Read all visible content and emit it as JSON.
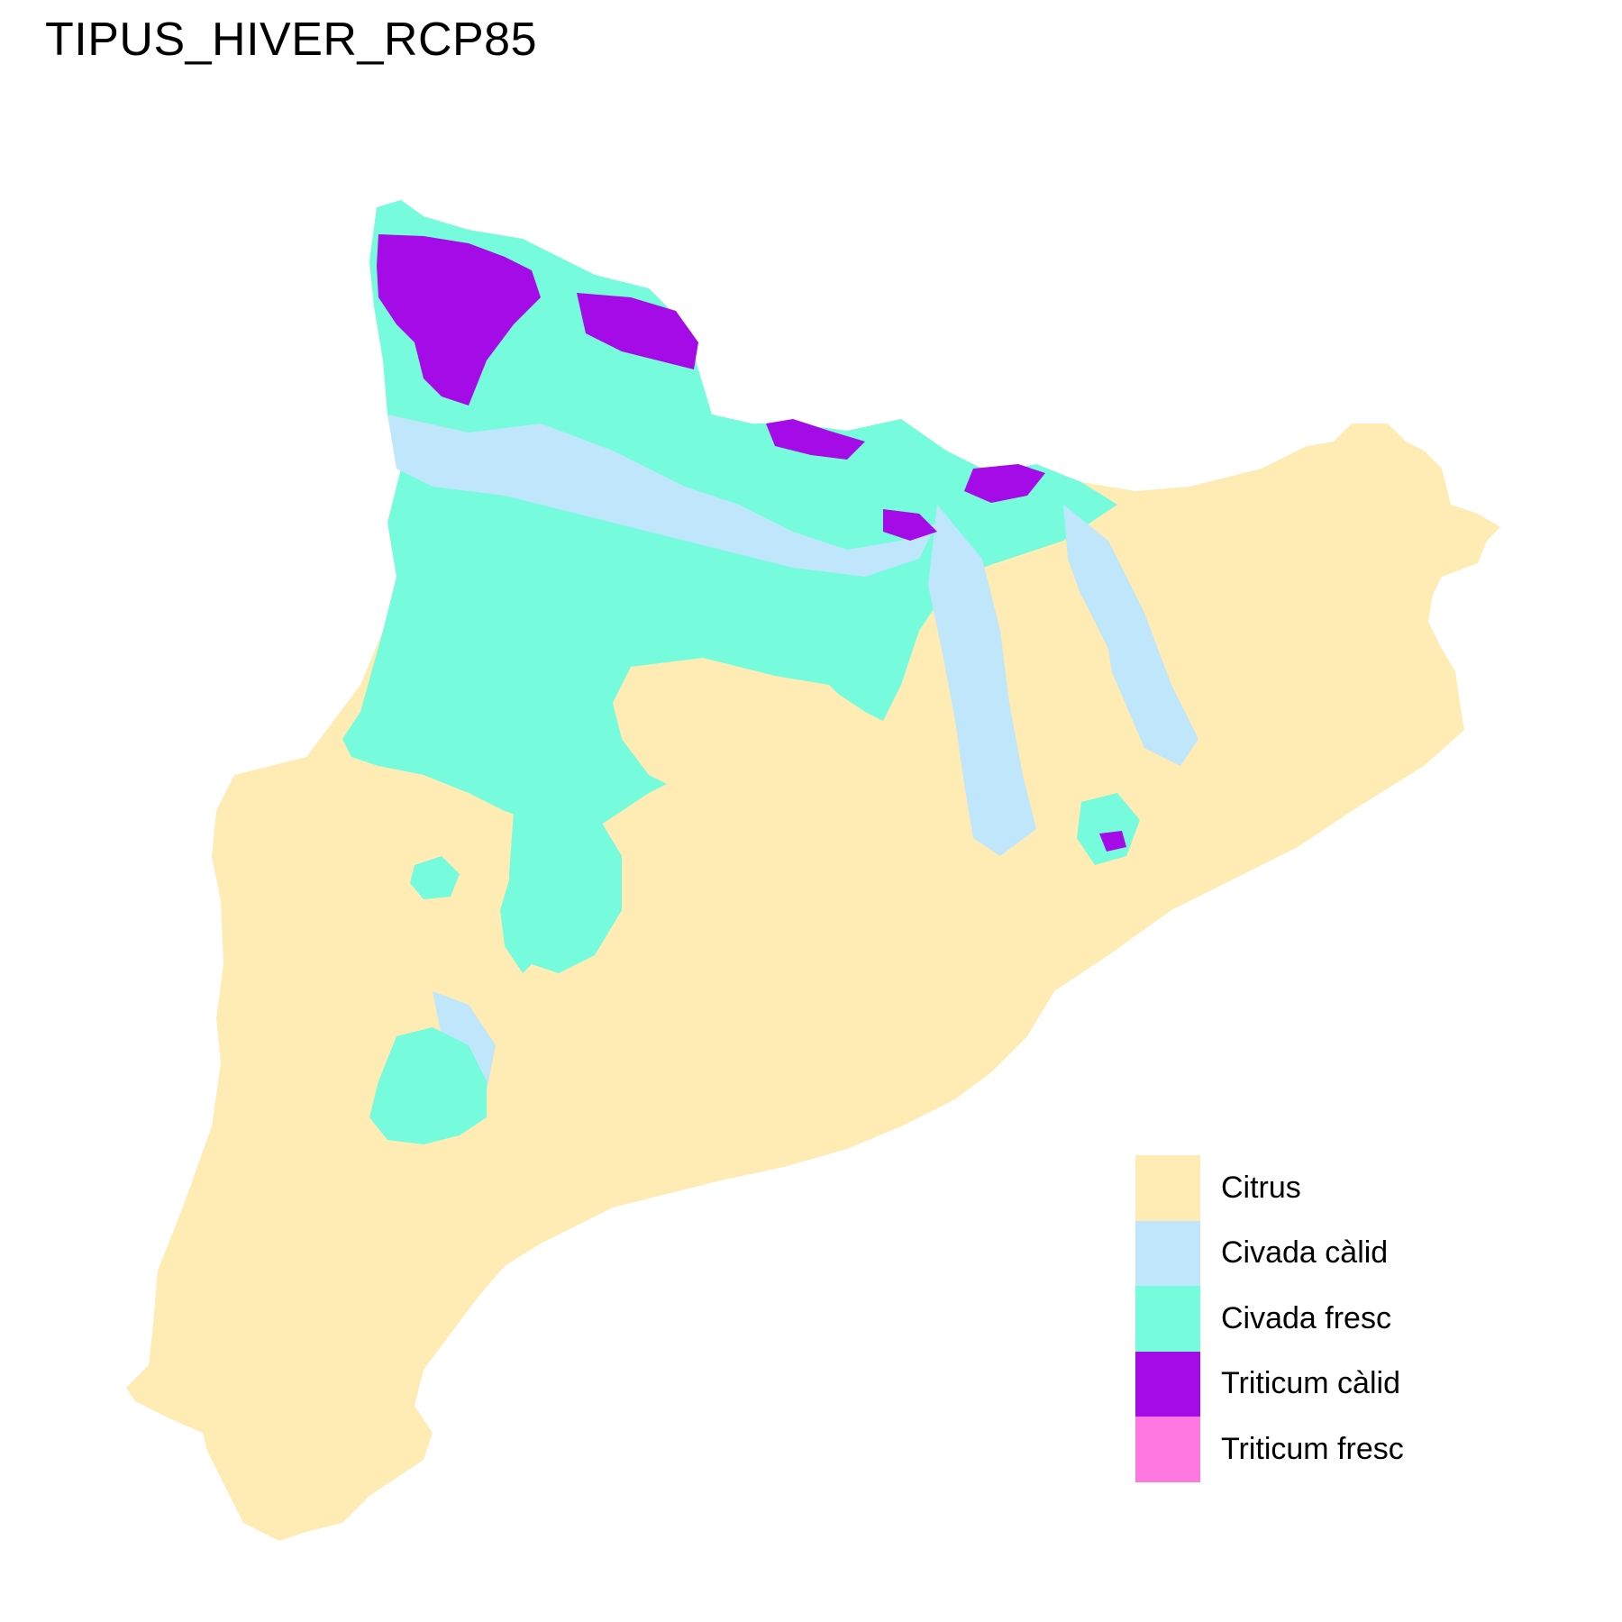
{
  "map": {
    "title": "TIPUS_HIVER_RCP85",
    "legend": [
      {
        "label": "Citrus",
        "color": "#FEECB4"
      },
      {
        "label": "Civada càlid",
        "color": "#BFE6FA"
      },
      {
        "label": "Civada fresc",
        "color": "#76FCDD"
      },
      {
        "label": "Triticum càlid",
        "color": "#A50BE6"
      },
      {
        "label": "Triticum fresc",
        "color": "#FF78E2"
      }
    ]
  }
}
